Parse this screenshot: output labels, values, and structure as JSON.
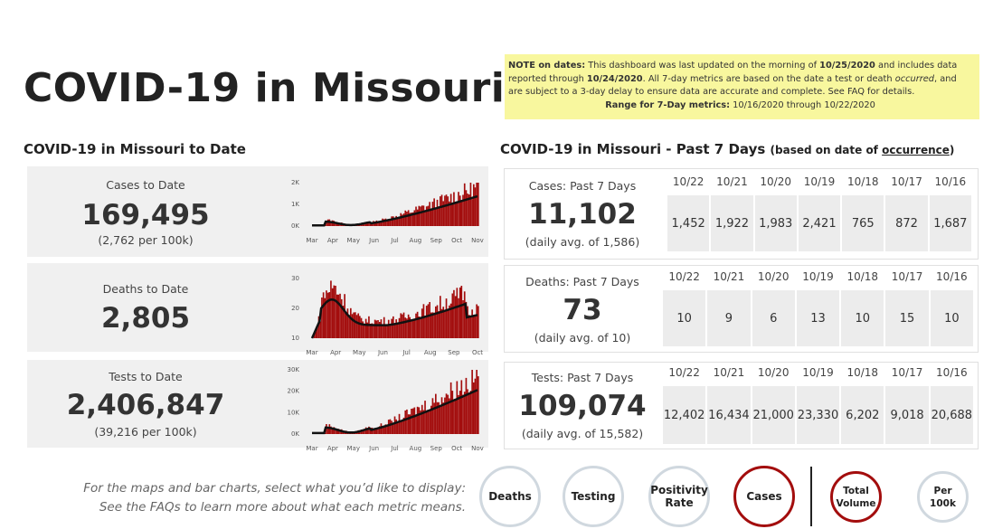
{
  "title": "COVID-19 in Missouri",
  "note": {
    "line1_label": "NOTE on dates:",
    "line1_text_a": " This dashboard was last updated on the morning of ",
    "last_updated": "10/25/2020",
    "line1_text_b": " and includes data reported through ",
    "reported_through": "10/24/2020",
    "line1_text_c": ". All 7-day metrics are based on the date a test or death ",
    "occurred_word": "occurred",
    "line1_text_d": ", and are subject to a 3-day delay to ensure data are accurate and complete. See FAQ for details.",
    "range_label": "Range for 7-Day metrics:",
    "range_text": " 10/16/2020 through 10/22/2020"
  },
  "to_date": {
    "section_title": "COVID-19 in Missouri to Date",
    "panels": [
      {
        "label": "Cases to Date",
        "value": "169,495",
        "sub": "(2,762 per 100k)",
        "y_ticks": [
          "2K",
          "1K",
          "0K"
        ],
        "x_ticks": [
          "Mar",
          "Apr",
          "May",
          "Jun",
          "Jul",
          "Aug",
          "Sep",
          "Oct",
          "Nov"
        ]
      },
      {
        "label": "Deaths to Date",
        "value": "2,805",
        "sub": "",
        "y_ticks": [
          "30",
          "20",
          "10"
        ],
        "x_ticks": [
          "Mar",
          "Apr",
          "May",
          "Jun",
          "Jul",
          "Aug",
          "Sep",
          "Oct"
        ]
      },
      {
        "label": "Tests to Date",
        "value": "2,406,847",
        "sub": "(39,216 per 100k)",
        "y_ticks": [
          "30K",
          "20K",
          "10K",
          "0K"
        ],
        "x_ticks": [
          "Mar",
          "Apr",
          "May",
          "Jun",
          "Jul",
          "Aug",
          "Sep",
          "Oct",
          "Nov"
        ]
      }
    ]
  },
  "past7": {
    "section_title": "COVID-19 in Missouri - Past 7 Days",
    "subtitle_prefix": "(based on date of ",
    "subtitle_link": "occurrence",
    "subtitle_suffix": ")",
    "panels": [
      {
        "label": "Cases: Past 7 Days",
        "value": "11,102",
        "sub": "(daily avg. of 1,586)",
        "dates": [
          "10/22",
          "10/21",
          "10/20",
          "10/19",
          "10/18",
          "10/17",
          "10/16"
        ],
        "values": [
          "1,452",
          "1,922",
          "1,983",
          "2,421",
          "765",
          "872",
          "1,687"
        ]
      },
      {
        "label": "Deaths: Past 7 Days",
        "value": "73",
        "sub": "(daily avg. of 10)",
        "dates": [
          "10/22",
          "10/21",
          "10/20",
          "10/19",
          "10/18",
          "10/17",
          "10/16"
        ],
        "values": [
          "10",
          "9",
          "6",
          "13",
          "10",
          "15",
          "10"
        ]
      },
      {
        "label": "Tests: Past 7 Days",
        "value": "109,074",
        "sub": "(daily avg. of 15,582)",
        "dates": [
          "10/22",
          "10/21",
          "10/20",
          "10/19",
          "10/18",
          "10/17",
          "10/16"
        ],
        "values": [
          "12,402",
          "16,434",
          "21,000",
          "23,330",
          "6,202",
          "9,018",
          "20,688"
        ]
      }
    ]
  },
  "footer": {
    "line1": "For the maps and bar charts, select what you’d like to display:",
    "line2": "See the FAQs to learn more about what each metric means."
  },
  "buttons": {
    "deaths": "Deaths",
    "testing": "Testing",
    "positivity_l1": "Positivity",
    "positivity_l2": "Rate",
    "cases": "Cases",
    "total_l1": "Total",
    "total_l2": "Volume",
    "per_l1": "Per",
    "per_l2": "100k",
    "selected_metric": "Cases",
    "selected_scale": "Total Volume"
  },
  "colors": {
    "bar": "#a30d0d",
    "trend": "#111111",
    "note_bg": "#f8f79e",
    "selected_ring": "#a30d0d",
    "unselected_ring": "#d0d8df"
  }
}
